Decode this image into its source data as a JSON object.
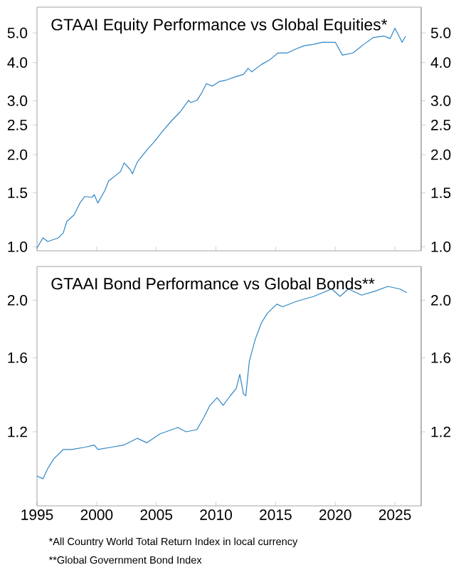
{
  "chart_data": [
    {
      "type": "line",
      "title": "GTAAI Equity Performance vs Global Equities*",
      "log": "y",
      "color": "#2f86c4",
      "line_style": "solid",
      "marker": "none",
      "grid": false,
      "tick_labels": "y",
      "x": [
        1995.0,
        1995.5,
        1995.9,
        1996.8,
        1997.2,
        1997.5,
        1998.1,
        1998.6,
        1999.0,
        1999.6,
        1999.8,
        2000.1,
        2000.7,
        2001.0,
        2002.0,
        2002.3,
        2002.8,
        2003.0,
        2003.4,
        2004.2,
        2004.9,
        2005.5,
        2006.2,
        2007.0,
        2007.7,
        2007.9,
        2008.4,
        2008.8,
        2009.2,
        2009.7,
        2010.3,
        2010.8,
        2011.7,
        2012.3,
        2012.7,
        2013.0,
        2013.8,
        2014.5,
        2015.2,
        2016.0,
        2016.7,
        2017.4,
        2018.2,
        2018.9,
        2020.0,
        2020.6,
        2021.5,
        2022.4,
        2023.2,
        2024.1,
        2024.6,
        2025.0,
        2025.6,
        2025.9
      ],
      "values": [
        0.99,
        1.07,
        1.04,
        1.07,
        1.11,
        1.21,
        1.27,
        1.39,
        1.46,
        1.45,
        1.48,
        1.39,
        1.53,
        1.64,
        1.76,
        1.88,
        1.79,
        1.73,
        1.89,
        2.07,
        2.22,
        2.38,
        2.56,
        2.76,
        3.01,
        2.96,
        3.01,
        3.18,
        3.41,
        3.35,
        3.47,
        3.5,
        3.6,
        3.66,
        3.83,
        3.73,
        3.94,
        4.08,
        4.3,
        4.3,
        4.43,
        4.54,
        4.59,
        4.66,
        4.66,
        4.23,
        4.3,
        4.59,
        4.83,
        4.88,
        4.79,
        5.18,
        4.66,
        4.88
      ],
      "xlim": [
        1995,
        2027.2
      ],
      "xticks": [
        1995,
        2000,
        2005,
        2010,
        2015,
        2020,
        2025
      ],
      "ylim": [
        0.97,
        6.07
      ],
      "yticks": [
        {
          "value": 1.0,
          "label": "1.0"
        },
        {
          "value": 1.5,
          "label": "1.5"
        },
        {
          "value": 2.0,
          "label": "2.0"
        },
        {
          "value": 2.5,
          "label": "2.5"
        },
        {
          "value": 3.0,
          "label": "3.0"
        },
        {
          "value": 4.0,
          "label": "4.0"
        },
        {
          "value": 5.0,
          "label": "5.0"
        }
      ]
    },
    {
      "type": "line",
      "title": "GTAAI Bond Performance vs Global Bonds**",
      "log": "y",
      "color": "#2f86c4",
      "line_style": "solid",
      "marker": "none",
      "grid": false,
      "x": [
        1995.0,
        1995.5,
        1995.9,
        1996.4,
        1997.2,
        1997.9,
        1999.0,
        1999.8,
        2000.1,
        2001.2,
        2002.3,
        2003.4,
        2004.2,
        2005.3,
        2006.8,
        2007.5,
        2008.4,
        2009.0,
        2009.5,
        2010.1,
        2010.6,
        2011.2,
        2011.7,
        2012.0,
        2012.3,
        2012.5,
        2012.8,
        2013.3,
        2013.8,
        2014.3,
        2015.1,
        2015.6,
        2016.7,
        2018.2,
        2019.7,
        2020.4,
        2021.1,
        2022.2,
        2023.3,
        2024.4,
        2025.4,
        2026.0
      ],
      "values": [
        1.01,
        1.0,
        1.04,
        1.08,
        1.12,
        1.12,
        1.13,
        1.14,
        1.12,
        1.13,
        1.14,
        1.17,
        1.15,
        1.19,
        1.22,
        1.2,
        1.21,
        1.27,
        1.33,
        1.37,
        1.33,
        1.38,
        1.42,
        1.5,
        1.39,
        1.38,
        1.58,
        1.72,
        1.83,
        1.9,
        1.97,
        1.95,
        1.99,
        2.03,
        2.09,
        2.03,
        2.09,
        2.04,
        2.07,
        2.11,
        2.09,
        2.06
      ],
      "xlim": [
        1995,
        2027.2
      ],
      "xticks": [
        1995,
        2000,
        2005,
        2010,
        2015,
        2020,
        2025
      ],
      "ylim": [
        0.9,
        2.28
      ],
      "yticks": [
        {
          "value": 1.2,
          "label": "1.2"
        },
        {
          "value": 1.6,
          "label": "1.6"
        },
        {
          "value": 2.0,
          "label": "2.0"
        }
      ],
      "annotations": [
        "*All Country World Total Return Index in local currency",
        "**Global Government Bond Index"
      ]
    }
  ]
}
